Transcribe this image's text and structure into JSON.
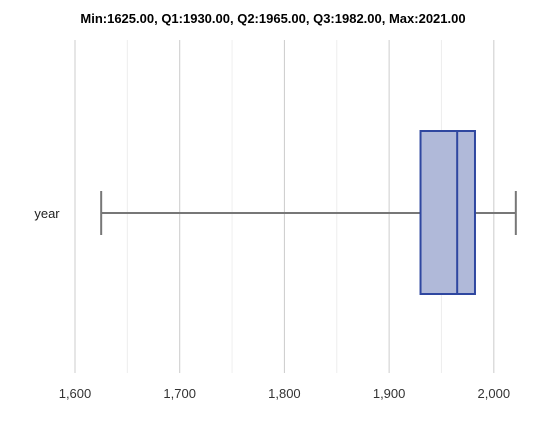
{
  "chart_data": {
    "type": "boxplot",
    "title": "Min:1625.00, Q1:1930.00, Q2:1965.00, Q3:1982.00, Max:2021.00",
    "xlabel": "",
    "ylabel": "",
    "category": "year",
    "stats": {
      "min": 1625,
      "q1": 1930,
      "median": 1965,
      "q3": 1982,
      "max": 2021
    },
    "xlim": [
      1600,
      2025
    ],
    "xticks": [
      1600,
      1700,
      1800,
      1900,
      2000
    ],
    "xtick_labels": [
      "1,600",
      "1,700",
      "1,800",
      "1,900",
      "2,000"
    ],
    "grid": true,
    "colors": {
      "box_fill": "#b0b9d9",
      "box_stroke": "#2f47a0",
      "whisker": "#777777",
      "grid": "#cccccc",
      "minor_grid": "#eeeeee"
    }
  }
}
